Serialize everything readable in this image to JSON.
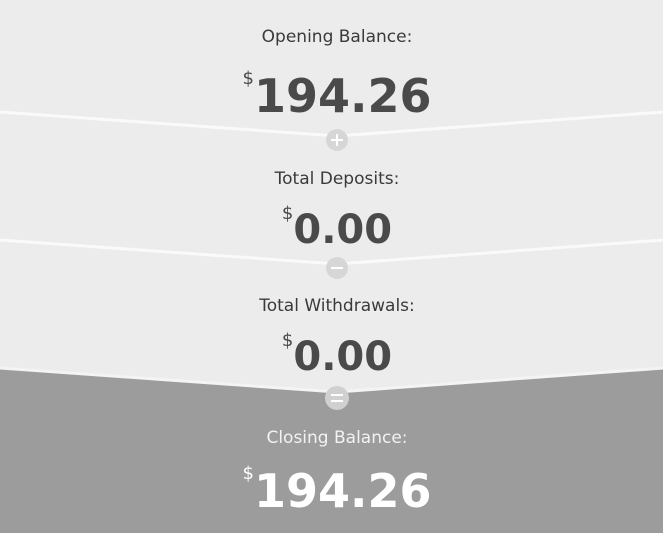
{
  "sections": [
    {
      "label": "Opening Balance:",
      "currency": "$",
      "amount": "194.26"
    },
    {
      "label": "Total Deposits:",
      "currency": "$",
      "amount": "0.00"
    },
    {
      "label": "Total Withdrawals:",
      "currency": "$",
      "amount": "0.00"
    },
    {
      "label": "Closing Balance:",
      "currency": "$",
      "amount": "194.26"
    }
  ]
}
